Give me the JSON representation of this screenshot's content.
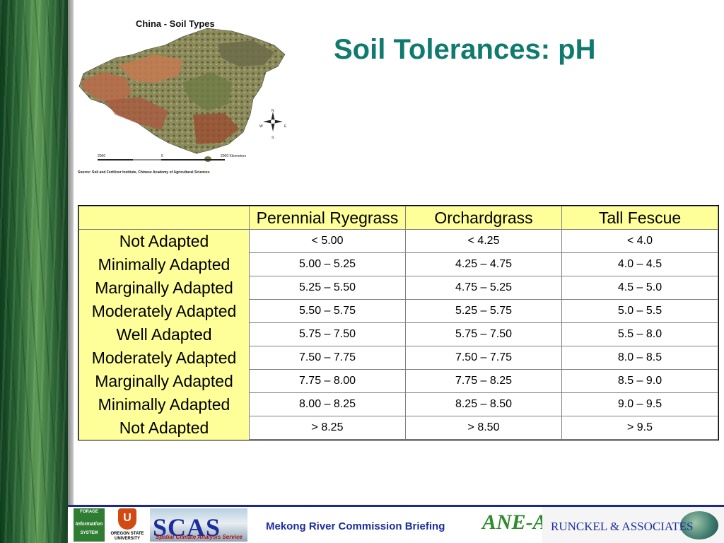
{
  "slide_title": "Soil Tolerances: pH",
  "map": {
    "title": "China - Soil Types",
    "scale_labels": [
      "2000",
      "0",
      "2000 Kilometers"
    ],
    "source": "Source: Soil and Fertilizer Institute, Chinese Academy of Agricultural Sciences",
    "compass": [
      "N",
      "W",
      "E",
      "S"
    ]
  },
  "table": {
    "columns": [
      "",
      "Perennial Ryegrass",
      "Orchardgrass",
      "Tall Fescue"
    ],
    "rows": [
      {
        "label": "Not Adapted",
        "values": [
          "< 5.00",
          "< 4.25",
          "< 4.0"
        ]
      },
      {
        "label": "Minimally Adapted",
        "values": [
          "5.00 – 5.25",
          "4.25 – 4.75",
          "4.0 – 4.5"
        ]
      },
      {
        "label": "Marginally Adapted",
        "values": [
          "5.25 – 5.50",
          "4.75 – 5.25",
          "4.5 – 5.0"
        ]
      },
      {
        "label": "Moderately Adapted",
        "values": [
          "5.50 – 5.75",
          "5.25 – 5.75",
          "5.0 – 5.5"
        ]
      },
      {
        "label": "Well Adapted",
        "values": [
          "5.75 – 7.50",
          "5.75 – 7.50",
          "5.5 – 8.0"
        ]
      },
      {
        "label": "Moderately Adapted",
        "values": [
          "7.50 – 7.75",
          "7.50 – 7.75",
          "8.0 – 8.5"
        ]
      },
      {
        "label": "Marginally Adapted",
        "values": [
          "7.75 – 8.00",
          "7.75 – 8.25",
          "8.5 – 9.0"
        ]
      },
      {
        "label": "Minimally Adapted",
        "values": [
          "8.00 – 8.25",
          "8.25 – 8.50",
          "9.0 – 9.5"
        ]
      },
      {
        "label": "Not Adapted",
        "values": [
          "> 8.25",
          "> 8.50",
          "> 9.5"
        ]
      }
    ]
  },
  "footer": {
    "fis_logo": [
      "FORAGE",
      "Information",
      "SYSTEM"
    ],
    "osu_logo": [
      "OREGON STATE",
      "UNIVERSITY"
    ],
    "osu_mark": "U",
    "scas_logo": "SCAS",
    "scas_subtitle": "Spatial Climate Analysis Service",
    "briefing": "Mekong River Commission Briefing",
    "ane_logo": "ANE-Asia",
    "runckel_logo": "RUNCKEL & ASSOCIATES"
  }
}
